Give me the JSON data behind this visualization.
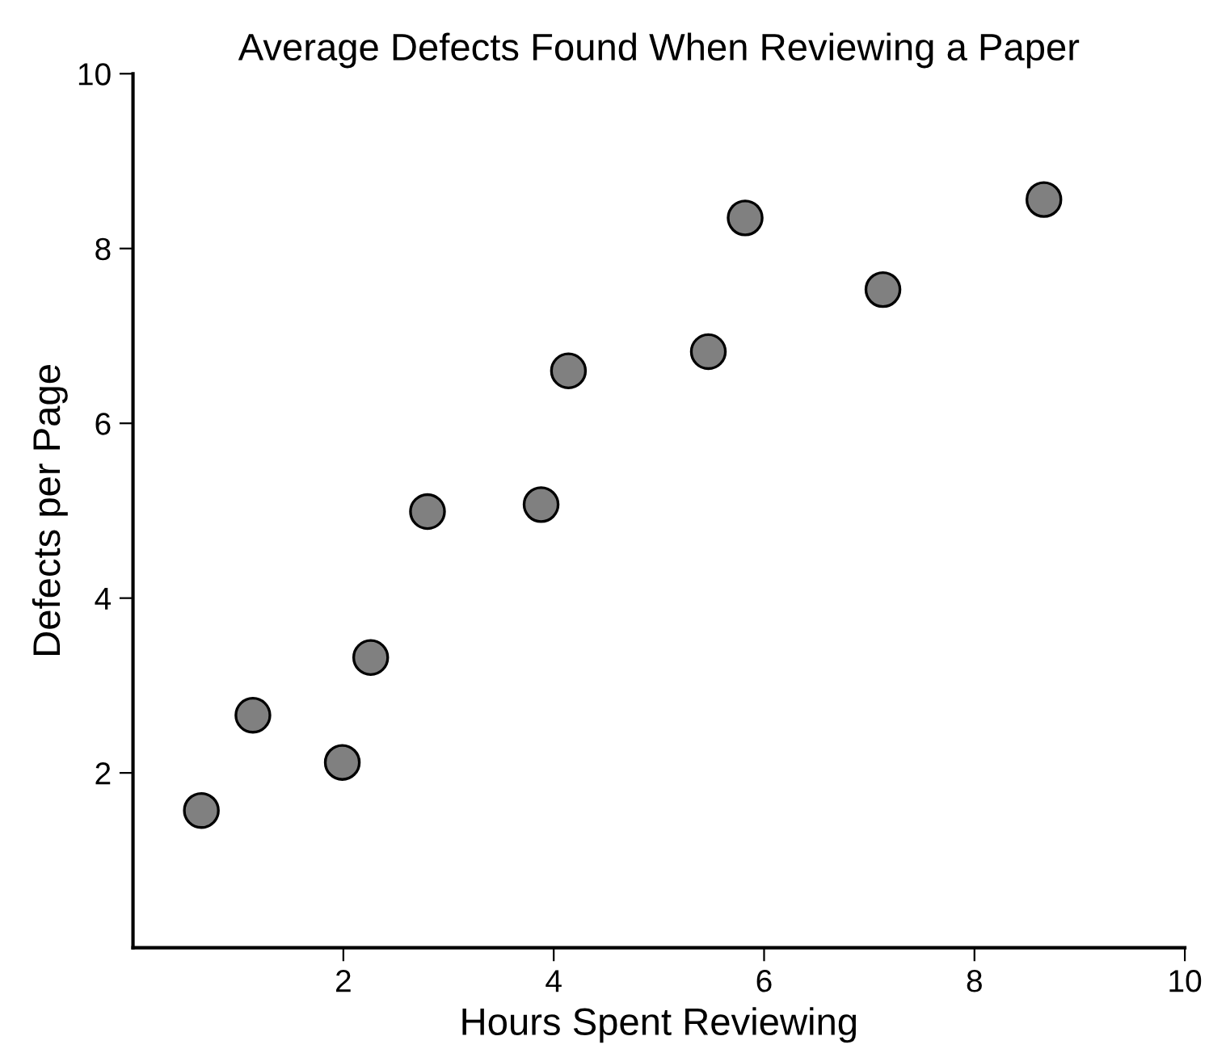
{
  "chart_data": {
    "type": "scatter",
    "title": "Average Defects Found When Reviewing a Paper",
    "xlabel": "Hours Spent Reviewing",
    "ylabel": "Defects per Page",
    "x": [
      0.65,
      1.14,
      1.99,
      2.26,
      2.8,
      3.88,
      4.14,
      5.47,
      5.82,
      7.13,
      8.66
    ],
    "series": [
      {
        "color": "#808080",
        "values": [
          1.57,
          2.66,
          2.12,
          3.32,
          4.99,
          5.07,
          6.6,
          6.82,
          8.35,
          7.53,
          8.56
        ]
      }
    ],
    "xlim": [
      0,
      10
    ],
    "ylim": [
      0,
      10
    ],
    "xticks": [
      2,
      4,
      6,
      8,
      10
    ],
    "yticks": [
      2,
      4,
      6,
      8,
      10
    ],
    "grid": false,
    "legend": false,
    "marker": "circle"
  }
}
